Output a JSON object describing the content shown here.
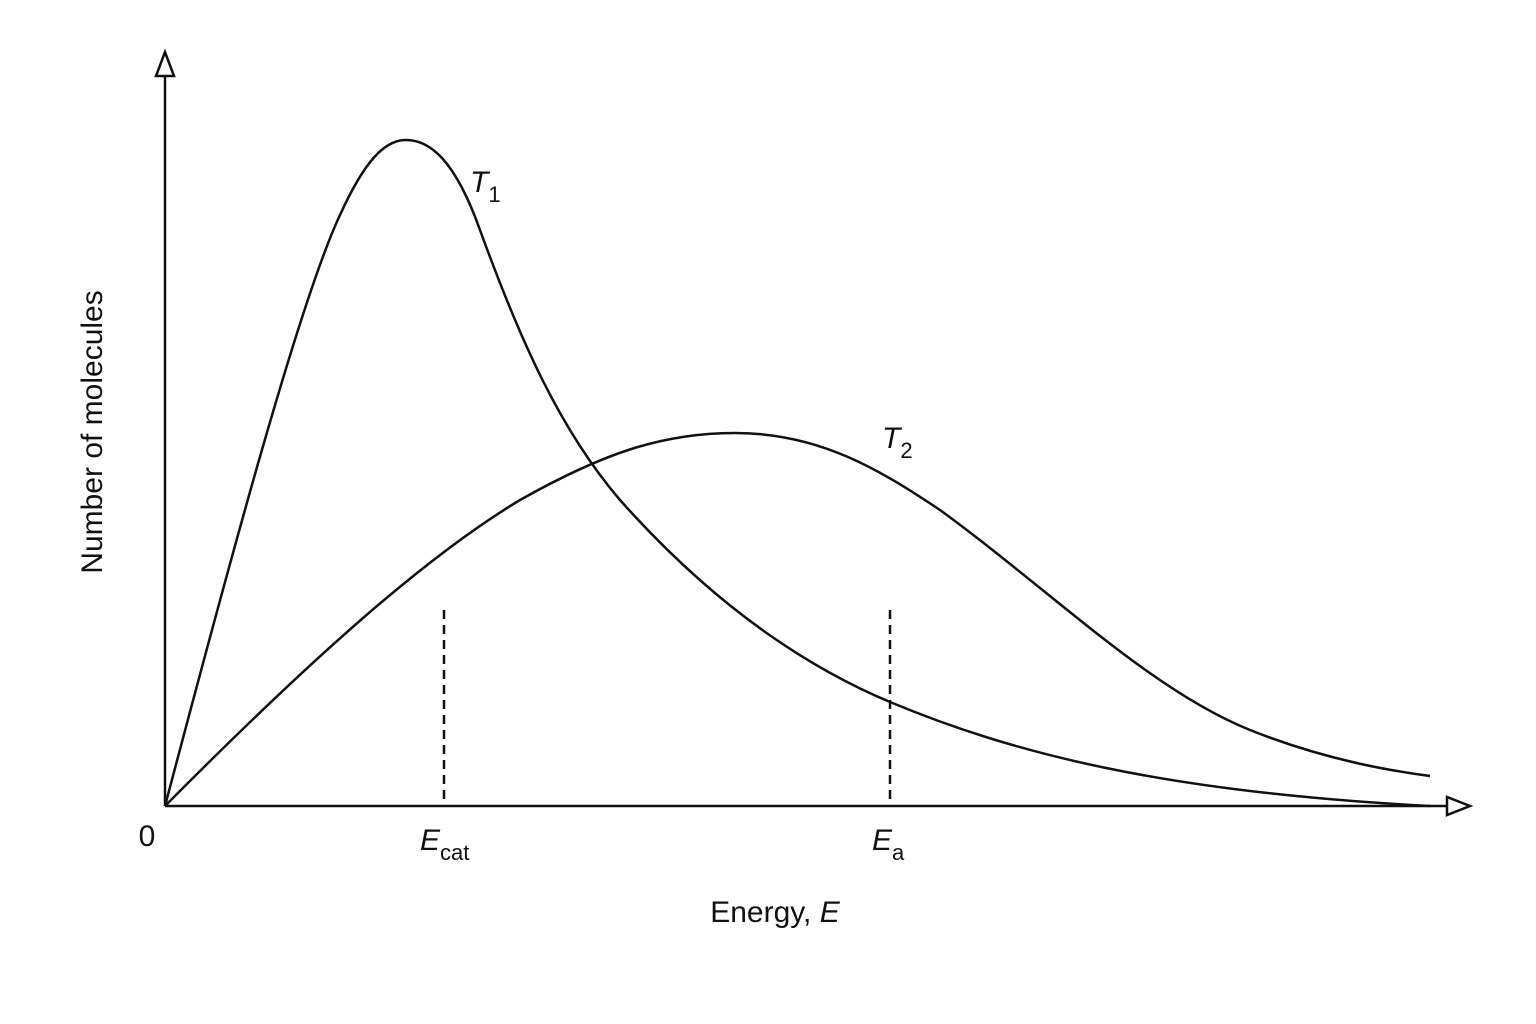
{
  "y_axis": {
    "label": "Number of molecules"
  },
  "x_axis": {
    "label": "Energy, ",
    "label_symbol": "E",
    "origin": "0"
  },
  "curves": [
    {
      "symbol": "T",
      "subscript": "1"
    },
    {
      "symbol": "T",
      "subscript": "2"
    }
  ],
  "markers": [
    {
      "symbol": "E",
      "subscript": "cat"
    },
    {
      "symbol": "E",
      "subscript": "a"
    }
  ]
}
